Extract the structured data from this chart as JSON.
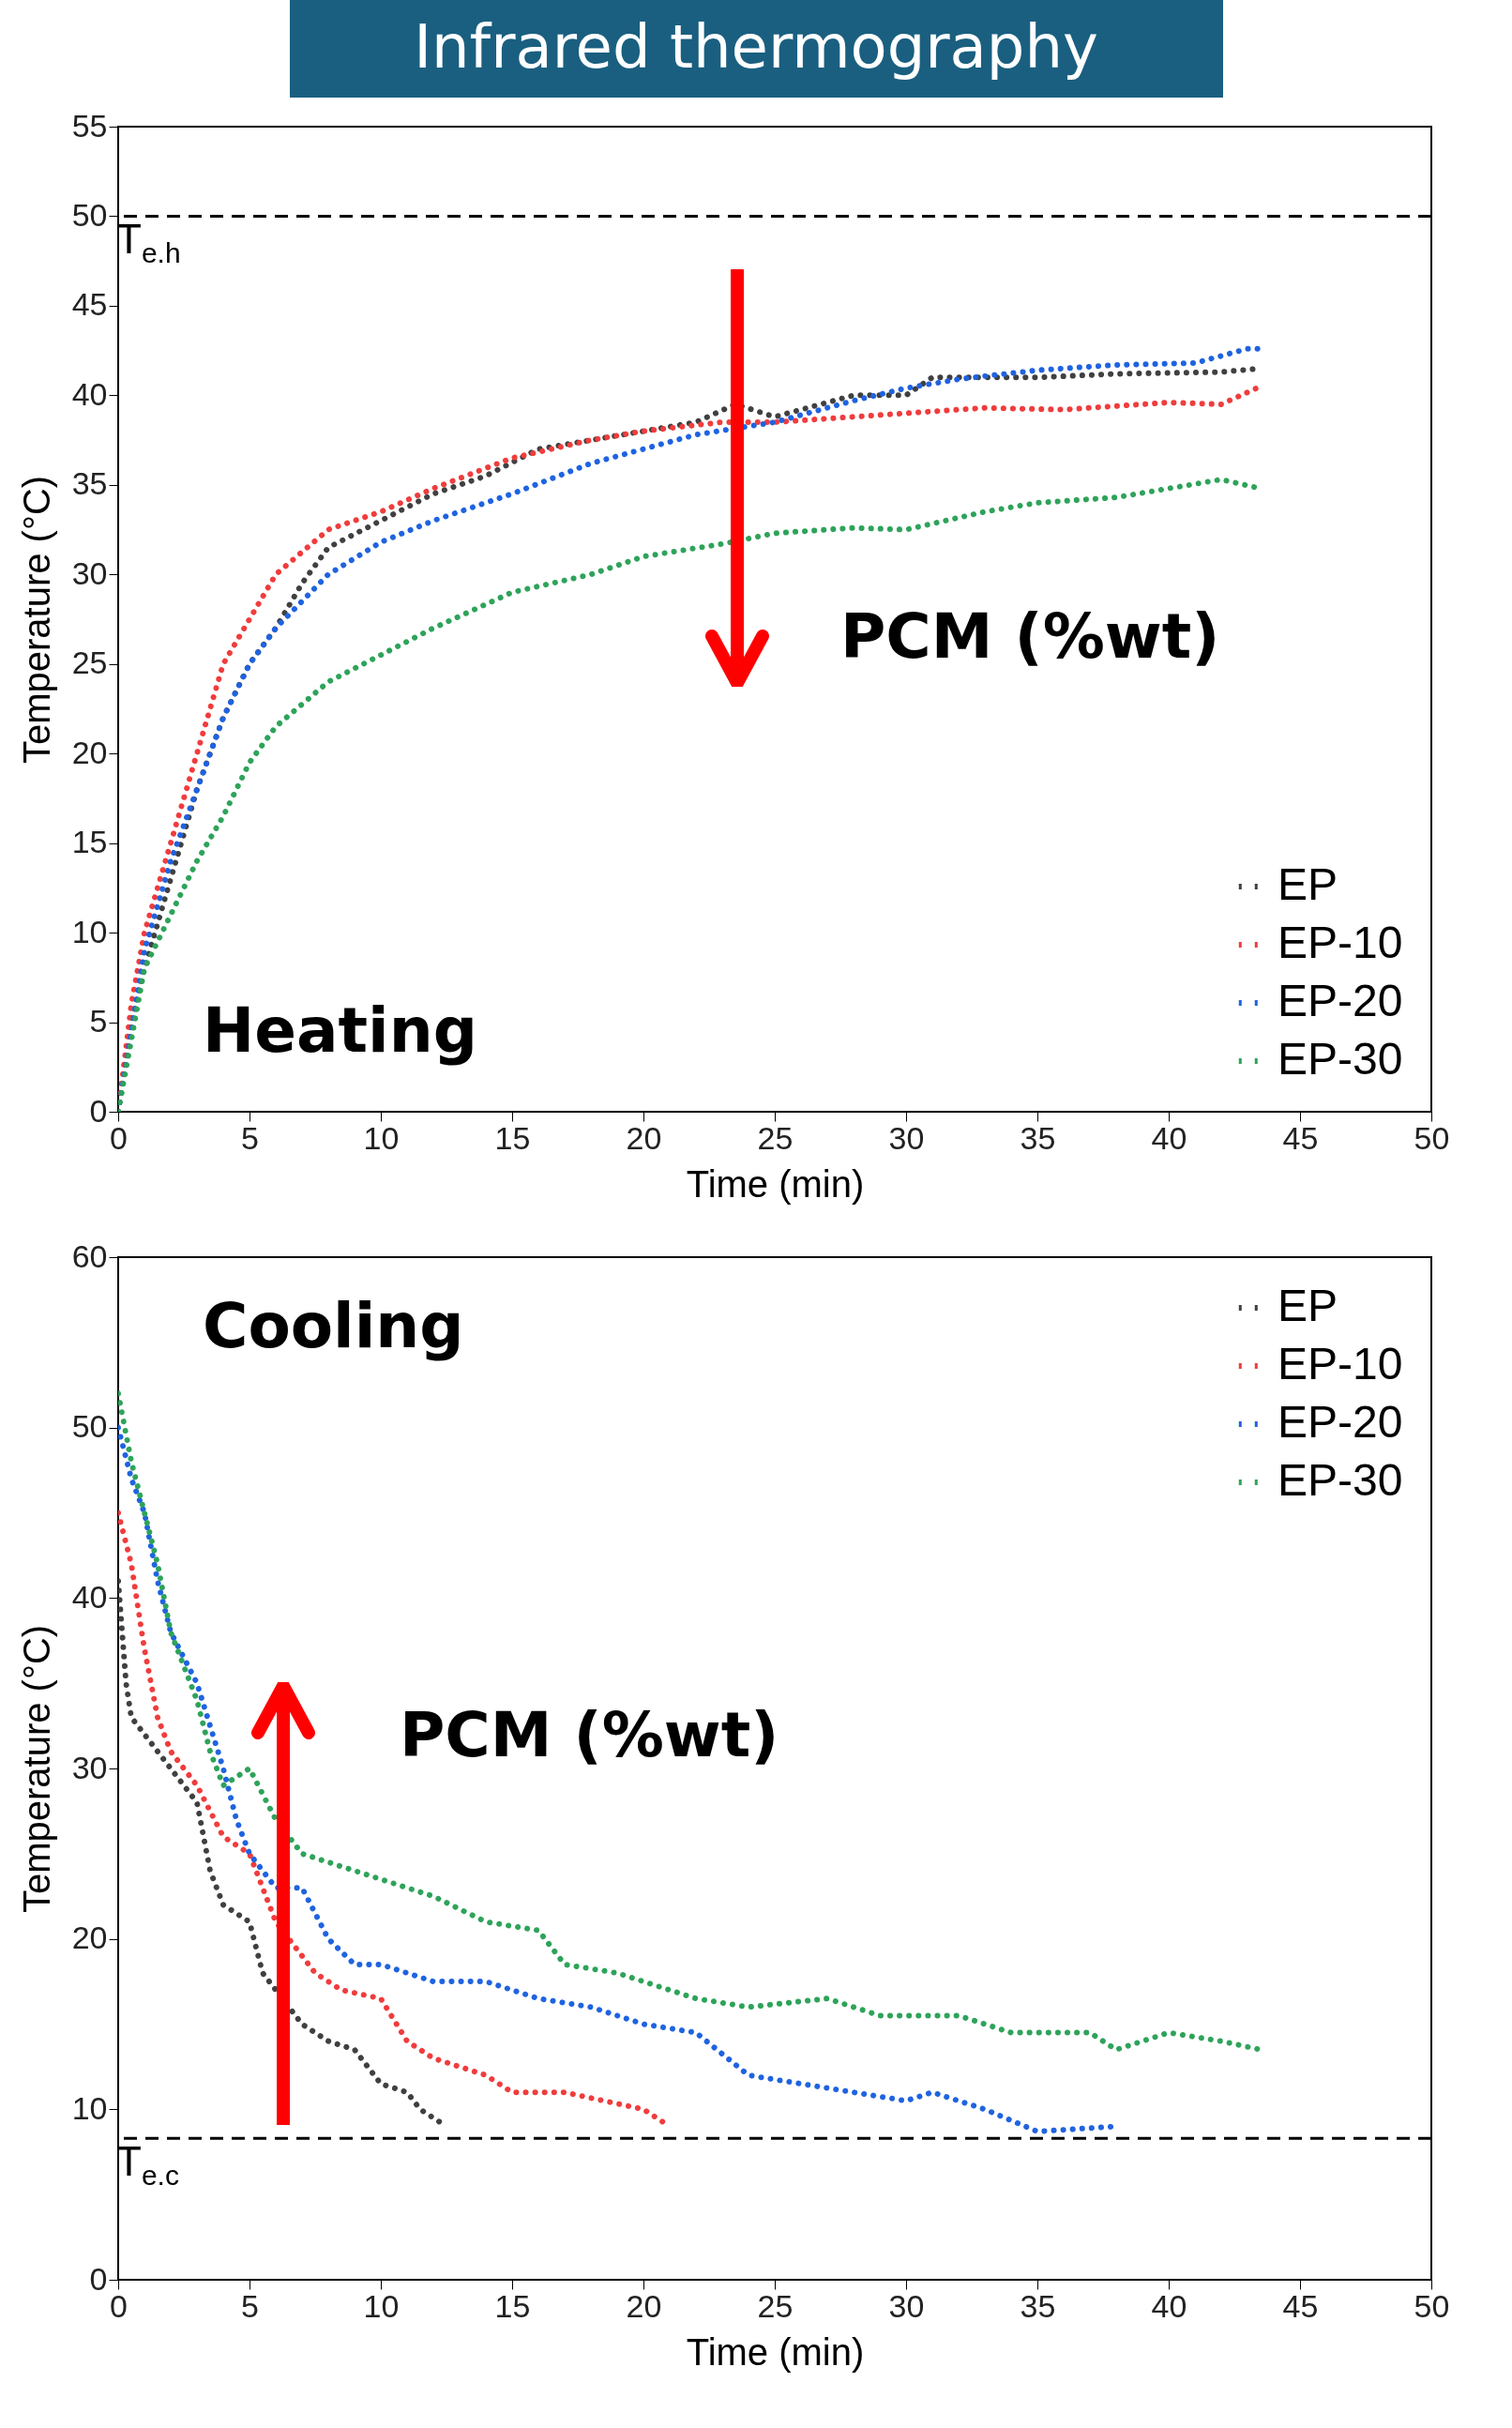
{
  "chart_data": [
    {
      "type": "line",
      "title": "Infrared thermography",
      "xlabel": "Time (min)",
      "ylabel": "Temperature (°C)",
      "xlim": [
        0,
        50
      ],
      "ylim": [
        0,
        55
      ],
      "xticks": [
        0,
        5,
        10,
        15,
        20,
        25,
        30,
        35,
        40,
        45,
        50
      ],
      "yticks": [
        0,
        5,
        10,
        15,
        20,
        25,
        30,
        35,
        40,
        45,
        50,
        55
      ],
      "grid": false,
      "legend": "bottom right",
      "line_style": "dotted",
      "series": [
        {
          "name": "EP",
          "color": "#404040",
          "x": [
            0,
            0.5,
            1,
            2,
            3,
            4,
            5,
            6,
            7,
            8,
            10,
            12,
            14,
            16,
            18,
            20,
            22,
            23.5,
            25,
            28,
            30,
            31,
            35,
            38,
            42,
            43.5
          ],
          "values": [
            0,
            5,
            8,
            13,
            18,
            22,
            25,
            27,
            29.5,
            31.5,
            33,
            34.5,
            35.5,
            37,
            37.5,
            38,
            38.5,
            39.5,
            38.8,
            40,
            40,
            41,
            41,
            41.2,
            41.3,
            41.5
          ]
        },
        {
          "name": "EP-10",
          "color": "#f03c3c",
          "x": [
            0,
            0.5,
            1,
            2,
            3,
            4,
            5,
            6,
            8,
            10,
            12,
            15,
            18,
            20,
            23,
            25,
            28,
            30,
            33,
            36,
            40,
            42,
            43.5
          ],
          "values": [
            0,
            6,
            10,
            15,
            20,
            25,
            27.5,
            30,
            32.5,
            33.5,
            34.8,
            36.5,
            37.5,
            38,
            38.5,
            38.5,
            38.8,
            39,
            39.3,
            39.2,
            39.6,
            39.5,
            40.5
          ]
        },
        {
          "name": "EP-20",
          "color": "#1f63e0",
          "x": [
            0,
            1,
            2,
            3,
            4,
            5,
            6,
            8,
            10,
            12,
            15,
            18,
            20,
            22,
            25,
            28,
            30,
            32,
            35,
            38,
            41,
            43,
            43.5
          ],
          "values": [
            0,
            9,
            14,
            18,
            22,
            25,
            27,
            30,
            31.8,
            33,
            34.5,
            36.2,
            37,
            37.8,
            38.5,
            39.7,
            40.4,
            40.9,
            41.4,
            41.7,
            41.8,
            42.6,
            42.6
          ]
        },
        {
          "name": "EP-30",
          "color": "#2ea35a",
          "x": [
            0,
            1,
            2,
            3,
            4,
            5,
            6,
            8,
            10,
            12,
            15,
            18,
            20,
            23,
            25,
            28,
            30,
            33,
            35,
            38,
            40,
            42,
            43.5
          ],
          "values": [
            0,
            8,
            11,
            14,
            16.5,
            19.5,
            21.5,
            24,
            25.5,
            27,
            29,
            30,
            31,
            31.7,
            32.3,
            32.6,
            32.5,
            33.5,
            34,
            34.3,
            34.8,
            35.3,
            34.8
          ]
        }
      ],
      "ref_lines": [
        {
          "axis": "y",
          "value": 50,
          "label": "T$_{e.h}$",
          "line_style": "dashed"
        }
      ],
      "annotations": [
        "Heating",
        "PCM (%wt)"
      ]
    },
    {
      "type": "line",
      "xlabel": "Time (min)",
      "ylabel": "Temperature (°C)",
      "xlim": [
        0,
        50
      ],
      "ylim": [
        0,
        60
      ],
      "xticks": [
        0,
        5,
        10,
        15,
        20,
        25,
        30,
        35,
        40,
        45,
        50
      ],
      "yticks": [
        0,
        10,
        20,
        30,
        40,
        50,
        60
      ],
      "grid": false,
      "legend": "top right",
      "line_style": "dotted",
      "series": [
        {
          "name": "EP",
          "color": "#404040",
          "x": [
            0,
            0.3,
            0.5,
            1,
            2,
            3,
            3.5,
            4,
            5,
            5.5,
            6,
            7,
            8,
            9,
            10,
            11,
            11.5,
            12.5
          ],
          "values": [
            41,
            35,
            33,
            32,
            30,
            28,
            24,
            22,
            21,
            18,
            17,
            15,
            14,
            13.5,
            11.5,
            11,
            10,
            9
          ]
        },
        {
          "name": "EP-10",
          "color": "#f03c3c",
          "x": [
            0,
            0.5,
            1,
            1.5,
            2,
            3,
            4,
            5,
            6,
            7,
            7.5,
            8.5,
            10,
            11,
            12,
            14,
            15,
            17,
            18.5,
            20,
            21
          ],
          "values": [
            45,
            42,
            37,
            33,
            31,
            29,
            26,
            25,
            21,
            19,
            18,
            17,
            16.5,
            14,
            13,
            12,
            11,
            11,
            10.5,
            10,
            9
          ]
        },
        {
          "name": "EP-20",
          "color": "#1f63e0",
          "x": [
            0,
            0.5,
            1,
            1.5,
            2,
            3,
            4,
            4.5,
            5,
            6,
            7,
            8,
            9,
            10,
            12,
            14,
            16,
            18,
            20,
            22,
            24,
            26,
            28,
            30,
            31,
            33,
            35,
            38
          ],
          "values": [
            50,
            47,
            45,
            41,
            38,
            35,
            30,
            27,
            25,
            23,
            23,
            20,
            18.5,
            18.5,
            17.5,
            17.5,
            16.5,
            16,
            15,
            14.5,
            12,
            11.5,
            11,
            10.5,
            11,
            10,
            8.7,
            9
          ]
        },
        {
          "name": "EP-30",
          "color": "#2ea35a",
          "x": [
            0,
            0.5,
            1,
            1.5,
            2,
            3,
            3.5,
            4,
            5,
            6,
            7,
            8,
            10,
            12,
            14,
            16,
            17,
            19,
            20,
            22,
            24,
            27,
            29,
            32,
            34,
            37,
            38,
            40,
            42,
            43.5
          ],
          "values": [
            52,
            48,
            45,
            42,
            38,
            34,
            31,
            29,
            30,
            27,
            25,
            24.5,
            23.5,
            22.5,
            21,
            20.5,
            18.5,
            18,
            17.5,
            16.5,
            16,
            16.5,
            15.5,
            15.5,
            14.5,
            14.5,
            13.5,
            14.5,
            14,
            13.5
          ]
        }
      ],
      "ref_lines": [
        {
          "axis": "y",
          "value": 8.3,
          "label": "T$_{e.c}$",
          "line_style": "dashed"
        }
      ],
      "annotations": [
        "Cooling",
        "PCM (%wt)"
      ]
    }
  ]
}
